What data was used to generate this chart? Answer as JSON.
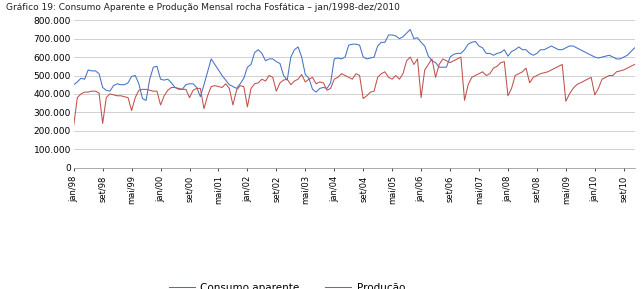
{
  "title": "Gráfico 19: Consumo Aparente e Produção Mensal rocha Fosfática – jan/1998-dez/2010",
  "ylim": [
    0,
    800000
  ],
  "yticks": [
    0,
    100000,
    200000,
    300000,
    400000,
    500000,
    600000,
    700000,
    800000
  ],
  "ytick_labels": [
    "0",
    "100.000",
    "200.000",
    "300.000",
    "400.000",
    "500.000",
    "600.000",
    "700.000",
    "800.000"
  ],
  "consumo_color": "#4472C4",
  "producao_color": "#C0504D",
  "legend_consumo": "Consumo aparente",
  "legend_producao": "Produção",
  "background_color": "#FFFFFF",
  "grid_color": "#BFBFBF",
  "xtick_labels": [
    "jan/98",
    "set/98",
    "mai/99",
    "jan/00",
    "set/00",
    "mai/01",
    "jan/02",
    "set/02",
    "mai/03",
    "jan/04",
    "set/04",
    "mai/05",
    "jan/06",
    "set/06",
    "mai/07",
    "jan/08",
    "set/08",
    "mai/09",
    "jan/10",
    "set/10"
  ],
  "xtick_positions": [
    0,
    8,
    16,
    24,
    32,
    40,
    48,
    56,
    64,
    72,
    80,
    88,
    96,
    104,
    112,
    120,
    128,
    136,
    144,
    152
  ],
  "consumo_data": [
    450000,
    465000,
    485000,
    480000,
    530000,
    525000,
    525000,
    510000,
    435000,
    420000,
    415000,
    445000,
    455000,
    450000,
    450000,
    460000,
    495000,
    500000,
    455000,
    375000,
    365000,
    480000,
    545000,
    550000,
    480000,
    475000,
    480000,
    460000,
    435000,
    425000,
    425000,
    450000,
    455000,
    455000,
    435000,
    385000,
    450000,
    520000,
    590000,
    560000,
    530000,
    500000,
    475000,
    450000,
    440000,
    430000,
    455000,
    485000,
    545000,
    560000,
    625000,
    640000,
    620000,
    580000,
    590000,
    590000,
    575000,
    565000,
    500000,
    475000,
    600000,
    640000,
    655000,
    600000,
    505000,
    485000,
    425000,
    410000,
    430000,
    435000,
    430000,
    460000,
    590000,
    595000,
    590000,
    600000,
    665000,
    670000,
    670000,
    665000,
    600000,
    590000,
    595000,
    600000,
    660000,
    680000,
    680000,
    720000,
    720000,
    715000,
    700000,
    710000,
    730000,
    750000,
    700000,
    705000,
    680000,
    660000,
    605000,
    580000,
    570000,
    545000,
    545000,
    545000,
    600000,
    615000,
    620000,
    620000,
    640000,
    670000,
    680000,
    685000,
    660000,
    650000,
    620000,
    620000,
    610000,
    620000,
    625000,
    640000,
    605000,
    630000,
    640000,
    655000,
    640000,
    640000,
    620000,
    610000,
    620000,
    640000,
    640000,
    650000,
    660000,
    650000,
    640000,
    640000,
    650000,
    660000,
    660000,
    650000,
    640000,
    630000,
    620000,
    610000,
    600000,
    595000,
    600000,
    605000,
    610000,
    600000,
    590000,
    590000,
    600000,
    610000,
    630000,
    650000
  ],
  "producao_data": [
    230000,
    380000,
    400000,
    410000,
    410000,
    415000,
    415000,
    405000,
    240000,
    380000,
    400000,
    395000,
    390000,
    390000,
    385000,
    380000,
    310000,
    380000,
    420000,
    425000,
    425000,
    420000,
    415000,
    415000,
    340000,
    390000,
    420000,
    435000,
    435000,
    430000,
    425000,
    425000,
    380000,
    420000,
    430000,
    430000,
    320000,
    390000,
    440000,
    445000,
    440000,
    435000,
    455000,
    430000,
    340000,
    420000,
    445000,
    440000,
    330000,
    430000,
    455000,
    460000,
    480000,
    470000,
    500000,
    490000,
    415000,
    460000,
    475000,
    480000,
    450000,
    470000,
    480000,
    505000,
    465000,
    480000,
    490000,
    455000,
    465000,
    460000,
    420000,
    430000,
    480000,
    490000,
    510000,
    500000,
    490000,
    480000,
    510000,
    500000,
    375000,
    390000,
    410000,
    415000,
    490000,
    510000,
    520000,
    490000,
    480000,
    500000,
    480000,
    510000,
    580000,
    600000,
    560000,
    590000,
    380000,
    530000,
    560000,
    590000,
    490000,
    560000,
    590000,
    580000,
    570000,
    580000,
    590000,
    600000,
    365000,
    450000,
    490000,
    500000,
    510000,
    520000,
    500000,
    510000,
    540000,
    550000,
    570000,
    575000,
    390000,
    430000,
    500000,
    510000,
    520000,
    540000,
    460000,
    490000,
    500000,
    510000,
    515000,
    520000,
    530000,
    540000,
    550000,
    560000,
    360000,
    400000,
    430000,
    450000,
    460000,
    470000,
    480000,
    490000,
    395000,
    430000,
    480000,
    490000,
    500000,
    500000,
    520000,
    525000,
    530000,
    540000,
    550000,
    560000
  ]
}
